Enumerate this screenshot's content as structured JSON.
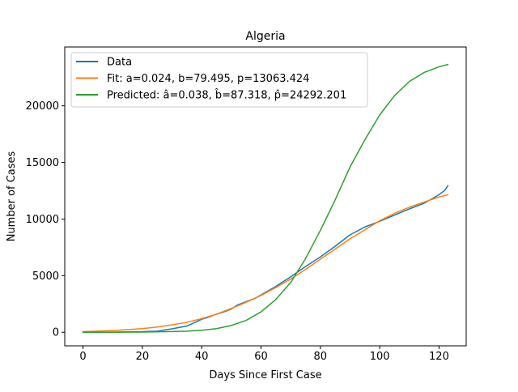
{
  "chart_data": {
    "type": "line",
    "title": "Algeria",
    "xlabel": "Days Since First Case",
    "ylabel": "Number of Cases",
    "xlim": [
      -6.15,
      129.15
    ],
    "ylim": [
      -1200,
      25200
    ],
    "xticks": [
      0,
      20,
      40,
      60,
      80,
      100,
      120
    ],
    "yticks": [
      0,
      5000,
      10000,
      15000,
      20000
    ],
    "grid": false,
    "legend_position": "top-left",
    "series": [
      {
        "name": "Data",
        "color": "#1f77b4",
        "x": [
          0,
          10,
          20,
          25,
          30,
          35,
          38,
          40,
          42,
          45,
          48,
          50,
          52,
          55,
          58,
          60,
          65,
          70,
          75,
          80,
          85,
          90,
          95,
          98,
          100,
          105,
          110,
          115,
          118,
          120,
          122,
          123
        ],
        "y": [
          0,
          10,
          50,
          100,
          300,
          550,
          900,
          1150,
          1300,
          1600,
          1850,
          2050,
          2400,
          2700,
          3000,
          3300,
          4050,
          4900,
          5800,
          6650,
          7600,
          8600,
          9300,
          9600,
          9800,
          10350,
          10900,
          11400,
          11850,
          12150,
          12550,
          12950
        ]
      },
      {
        "name": "Fit: a=0.024, b=79.495, p=13063.424",
        "color": "#ff7f0e",
        "x": [
          0,
          5,
          10,
          15,
          20,
          25,
          30,
          35,
          40,
          45,
          50,
          55,
          60,
          65,
          70,
          75,
          80,
          85,
          90,
          95,
          100,
          105,
          110,
          115,
          120,
          123
        ],
        "y": [
          60,
          100,
          150,
          230,
          320,
          460,
          650,
          880,
          1200,
          1600,
          2100,
          2650,
          3250,
          3950,
          4700,
          5550,
          6450,
          7350,
          8250,
          9050,
          9850,
          10500,
          11050,
          11500,
          11950,
          12150
        ]
      },
      {
        "name": "Predicted: â=0.038, b̂=87.318, p̂=24292.201",
        "color": "#2ca02c",
        "x": [
          0,
          10,
          20,
          30,
          35,
          40,
          45,
          50,
          55,
          60,
          65,
          70,
          75,
          80,
          85,
          90,
          95,
          100,
          105,
          110,
          115,
          120,
          123
        ],
        "y": [
          0,
          10,
          20,
          60,
          100,
          180,
          320,
          600,
          1050,
          1800,
          2900,
          4400,
          6500,
          9000,
          11700,
          14600,
          17000,
          19200,
          20900,
          22150,
          22950,
          23450,
          23650
        ]
      }
    ]
  }
}
